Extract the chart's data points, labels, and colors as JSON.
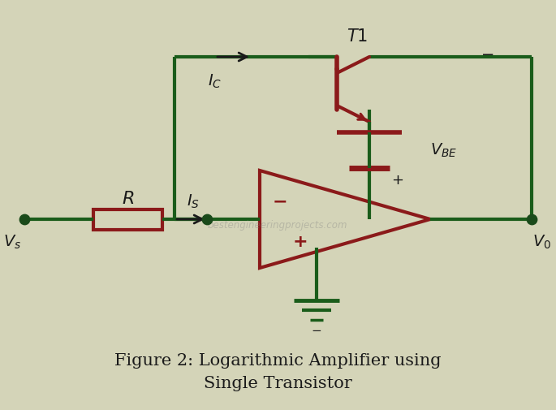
{
  "bg_color": "#d4d4b8",
  "wire_color": "#1a5c1a",
  "component_color": "#8b1a1a",
  "text_color": "#1a1a1a",
  "title": "Figure 2: Logarithmic Amplifier using\nSingle Transistor",
  "title_fontsize": 15,
  "watermark": "bestengineeringprojects.com",
  "node_color": "#1a4a1a"
}
